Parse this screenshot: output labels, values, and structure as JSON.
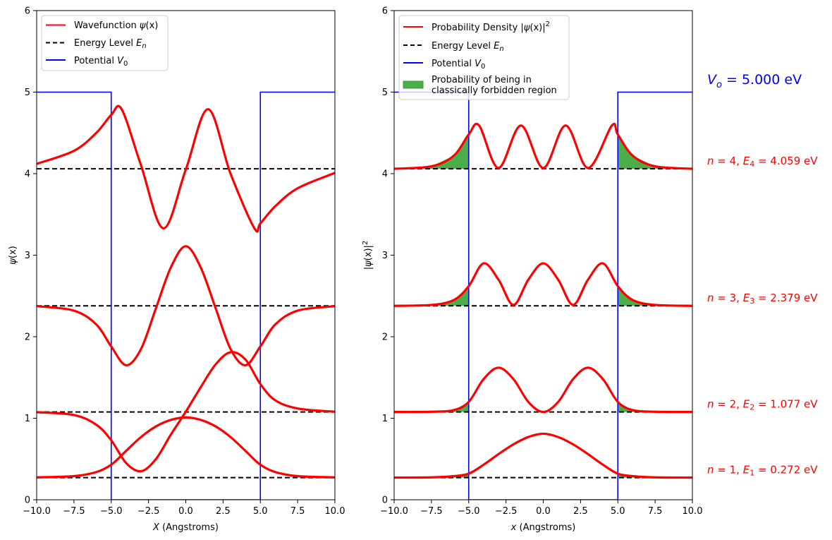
{
  "chart_data": [
    {
      "type": "line",
      "title": "",
      "xlabel": "X (Angstroms)",
      "ylabel": "ψ(x)",
      "xlim": [
        -10,
        10
      ],
      "ylim": [
        0,
        6
      ],
      "xticks": [
        "−10.0",
        "−7.5",
        "−5.0",
        "−2.5",
        "0.0",
        "2.5",
        "5.0",
        "7.5",
        "10.0"
      ],
      "yticks": [
        "0",
        "1",
        "2",
        "3",
        "4",
        "5",
        "6"
      ],
      "legend_position": "top-left",
      "legend": [
        "Wavefunction ψ(x)",
        "Energy Level E_n",
        "Potential V_0"
      ],
      "grid": false,
      "potential": {
        "V0": 5.0,
        "well": [
          -5,
          5
        ],
        "color": "#0000ff"
      },
      "series": [
        {
          "name": "n=1",
          "E": 0.272,
          "x": [
            -10,
            -7.5,
            -6,
            -5,
            -4,
            -3,
            -2,
            -1,
            0,
            1,
            2,
            3,
            4,
            5,
            6,
            7.5,
            10
          ],
          "y": [
            0.275,
            0.29,
            0.34,
            0.43,
            0.6,
            0.77,
            0.9,
            0.98,
            1.01,
            0.98,
            0.9,
            0.77,
            0.6,
            0.43,
            0.34,
            0.29,
            0.275
          ]
        },
        {
          "name": "n=2",
          "E": 1.077,
          "x": [
            -10,
            -7.5,
            -6,
            -5,
            -4,
            -3,
            -2,
            -1,
            0,
            1,
            2,
            3,
            4,
            5,
            6,
            7.5,
            10
          ],
          "y": [
            1.075,
            1.04,
            0.92,
            0.73,
            0.45,
            0.35,
            0.5,
            0.8,
            1.08,
            1.38,
            1.66,
            1.81,
            1.72,
            1.42,
            1.22,
            1.12,
            1.08
          ]
        },
        {
          "name": "n=3",
          "E": 2.379,
          "x": [
            -10,
            -7.5,
            -6,
            -5,
            -4,
            -3,
            -2,
            -1,
            0,
            1,
            2,
            3,
            4,
            5,
            6,
            7.5,
            10
          ],
          "y": [
            2.375,
            2.32,
            2.15,
            1.88,
            1.65,
            1.85,
            2.35,
            2.85,
            3.11,
            2.85,
            2.35,
            1.85,
            1.65,
            1.88,
            2.15,
            2.32,
            2.375
          ]
        },
        {
          "name": "n=4",
          "E": 4.059,
          "x": [
            -10,
            -7.5,
            -6,
            -5,
            -4.3,
            -3,
            -1.5,
            0,
            1.5,
            3,
            4.6,
            5,
            6,
            7.5,
            10
          ],
          "y": [
            4.12,
            4.28,
            4.5,
            4.72,
            4.79,
            4.1,
            3.33,
            4.05,
            4.79,
            4.0,
            3.33,
            3.39,
            3.6,
            3.82,
            4.01
          ]
        }
      ],
      "energy_levels": [
        0.272,
        1.077,
        2.379,
        4.059
      ]
    },
    {
      "type": "area",
      "title": "",
      "xlabel": "x (Angstroms)",
      "ylabel": "|ψ(x)|²",
      "xlim": [
        -10,
        10
      ],
      "ylim": [
        0,
        6
      ],
      "xticks": [
        "−10.0",
        "−7.5",
        "−5.0",
        "−2.5",
        "0.0",
        "2.5",
        "5.0",
        "7.5",
        "10.0"
      ],
      "yticks": [
        "0",
        "1",
        "2",
        "3",
        "4",
        "5",
        "6"
      ],
      "legend_position": "top-left",
      "legend": [
        "Probability Density |ψ(x)|²",
        "Energy Level E_n",
        "Potential V_0",
        "Probability of being in classically forbidden region"
      ],
      "grid": false,
      "potential": {
        "V0": 5.0,
        "well": [
          -5,
          5
        ],
        "color": "#0000ff"
      },
      "series": [
        {
          "name": "n=1",
          "E": 0.272,
          "x": [
            -10,
            -7.5,
            -6,
            -5,
            -4,
            -3,
            -2,
            -1,
            0,
            1,
            2,
            3,
            4,
            5,
            6,
            7.5,
            10
          ],
          "y": [
            0.272,
            0.275,
            0.29,
            0.32,
            0.43,
            0.56,
            0.68,
            0.77,
            0.81,
            0.77,
            0.68,
            0.56,
            0.43,
            0.32,
            0.29,
            0.275,
            0.272
          ]
        },
        {
          "name": "n=2",
          "E": 1.077,
          "x": [
            -10,
            -7.5,
            -6,
            -5,
            -4,
            -3,
            -2,
            -1,
            0,
            1,
            2,
            3,
            4,
            5,
            6,
            7.5,
            10
          ],
          "y": [
            1.077,
            1.08,
            1.1,
            1.2,
            1.48,
            1.62,
            1.48,
            1.2,
            1.077,
            1.2,
            1.48,
            1.62,
            1.48,
            1.2,
            1.1,
            1.08,
            1.077
          ]
        },
        {
          "name": "n=3",
          "E": 2.379,
          "x": [
            -10,
            -7.5,
            -6,
            -5,
            -4,
            -3,
            -2,
            -1,
            0,
            1,
            2,
            3,
            4,
            5,
            6,
            7.5,
            10
          ],
          "y": [
            2.379,
            2.39,
            2.45,
            2.62,
            2.9,
            2.7,
            2.39,
            2.7,
            2.9,
            2.7,
            2.39,
            2.7,
            2.9,
            2.62,
            2.45,
            2.39,
            2.379
          ]
        },
        {
          "name": "n=4",
          "E": 4.059,
          "x": [
            -10,
            -7.5,
            -6,
            -5,
            -4.3,
            -3,
            -1.5,
            0,
            1.5,
            3,
            4.6,
            5,
            6,
            7.5,
            10
          ],
          "y": [
            4.06,
            4.09,
            4.22,
            4.48,
            4.59,
            4.07,
            4.59,
            4.07,
            4.59,
            4.07,
            4.59,
            4.48,
            4.22,
            4.09,
            4.06
          ]
        }
      ],
      "energy_levels": [
        0.272,
        1.077,
        2.379,
        4.059
      ],
      "forbidden_fill_color": "#2ca02c"
    }
  ],
  "annotations": {
    "vo": {
      "lhs": "V",
      "sub": "o",
      "rest": " = 5.000 eV"
    },
    "levels": [
      {
        "n": "4",
        "sub": "4",
        "val": " = 4.059 eV",
        "E": 4.059
      },
      {
        "n": "3",
        "sub": "3",
        "val": " = 2.379 eV",
        "E": 2.379
      },
      {
        "n": "2",
        "sub": "2",
        "val": " = 1.077 eV",
        "E": 1.077
      },
      {
        "n": "1",
        "sub": "1",
        "val": " = 0.272 eV",
        "E": 0.272
      }
    ]
  },
  "legend_text": {
    "left": {
      "wave": "Wavefunction ",
      "wave_sym": "ψ",
      "wave_arg": "(x)",
      "energy": "Energy Level ",
      "energy_sym": "E",
      "energy_sub": "n",
      "pot": "Potential ",
      "pot_sym": "V",
      "pot_sub": "0"
    },
    "right": {
      "dens": "Probability Density |",
      "dens_sym": "ψ",
      "dens_arg": "(x)|",
      "dens_sup": "2",
      "energy": "Energy Level ",
      "energy_sym": "E",
      "energy_sub": "n",
      "pot": "Potential ",
      "pot_sym": "V",
      "pot_sub": "0",
      "forb1": "Probability of being in",
      "forb2": "classically forbidden region"
    }
  },
  "axis_text": {
    "left_xlabel_sym": "X",
    "left_xlabel_rest": " (Angstroms)",
    "left_ylabel_sym": "ψ",
    "left_ylabel_rest": "(x)",
    "right_xlabel_sym": "x",
    "right_xlabel_rest": " (Angstroms)",
    "right_ylabel_pre": "|",
    "right_ylabel_sym": "ψ",
    "right_ylabel_rest": "(x)|",
    "right_ylabel_sup": "2"
  },
  "colors": {
    "wave": "#ff0000",
    "energy": "#000000",
    "potential": "#0000ff",
    "forbidden": "#2ca02c"
  }
}
